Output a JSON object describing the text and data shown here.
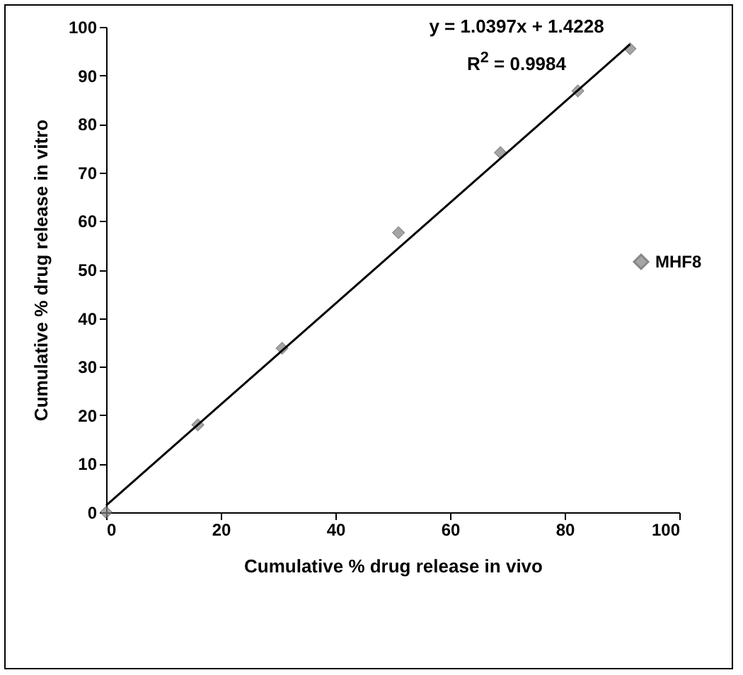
{
  "chart_data": {
    "type": "scatter",
    "xlabel": "Cumulative % drug release in vivo",
    "ylabel": "Cumulative % drug release in vitro",
    "annotations": [
      "y = 1.0397x + 1.4228",
      "R$^{2}$ = 0.9984"
    ],
    "series": [
      {
        "name": "MHF8",
        "color": "#808080",
        "type": "scatter",
        "marker": "diamond",
        "x": [
          0,
          16,
          30.7,
          51,
          68.8,
          82.3,
          91.4
        ],
        "values": [
          0,
          18,
          33.8,
          57.6,
          74.1,
          86.8,
          95.5
        ]
      },
      {
        "color": "#000000",
        "type": "line",
        "marker": "none",
        "line_style": "solid",
        "x": [
          0,
          91.4
        ],
        "values": [
          1.4,
          96.4
        ]
      }
    ],
    "xlim": [
      0,
      100
    ],
    "xticks": [
      0,
      20,
      40,
      60,
      80,
      100
    ],
    "ylim": [
      0,
      100
    ],
    "yticks": [
      0,
      10,
      20,
      30,
      40,
      50,
      60,
      70,
      80,
      90,
      100
    ],
    "grid": false,
    "legend": "right"
  }
}
